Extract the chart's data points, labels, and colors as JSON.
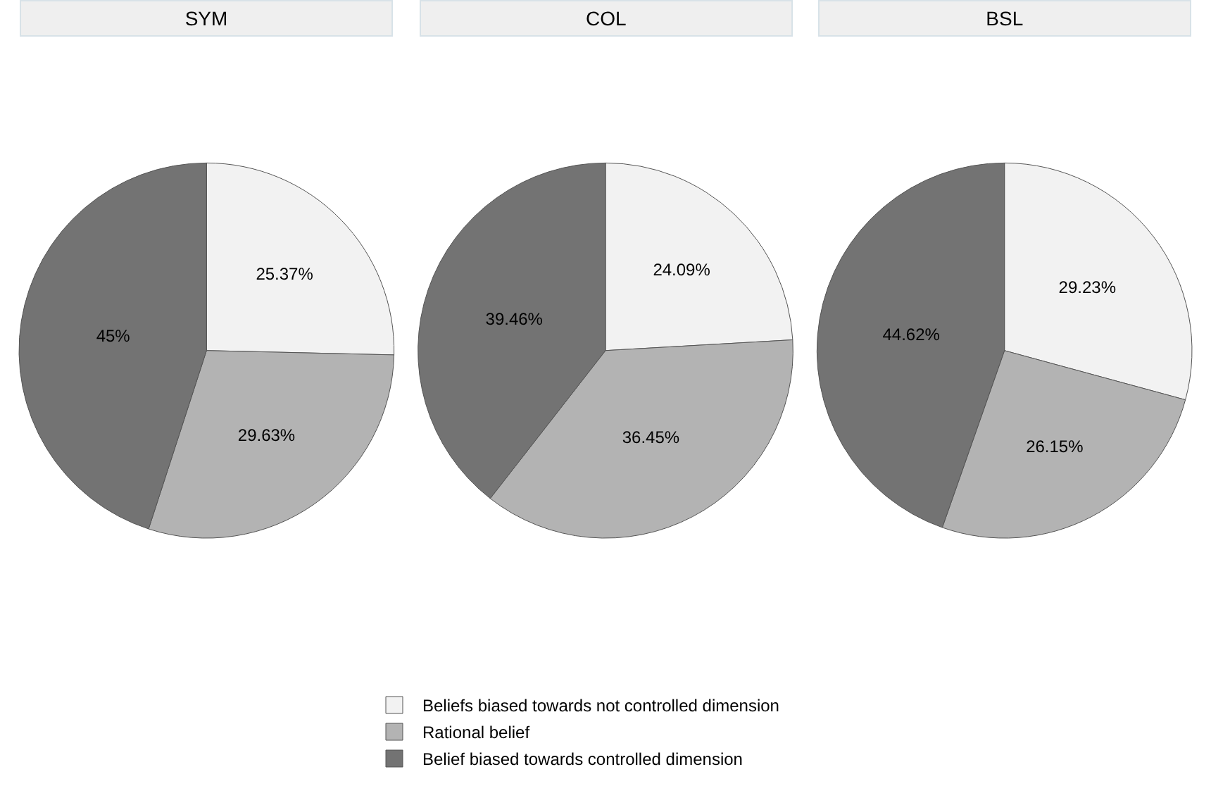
{
  "chart_data": [
    {
      "type": "pie",
      "title": "SYM",
      "categories": [
        "Beliefs biased towards not controlled dimension",
        "Rational belief",
        "Belief biased towards controlled dimension"
      ],
      "values": [
        25.37,
        29.63,
        45
      ],
      "value_labels": [
        "25.37%",
        "29.63%",
        "45%"
      ],
      "colors": [
        "#f2f2f2",
        "#b3b3b3",
        "#737373"
      ],
      "legend": "bottom"
    },
    {
      "type": "pie",
      "title": "COL",
      "categories": [
        null,
        null,
        null
      ],
      "values": [
        24.09,
        36.45,
        39.46
      ],
      "value_labels": [
        "24.09%",
        "36.45%",
        "39.46%"
      ],
      "colors": [
        "#f2f2f2",
        "#b3b3b3",
        "#737373"
      ]
    },
    {
      "type": "pie",
      "title": "BSL",
      "categories": [
        null,
        null,
        null
      ],
      "values": [
        29.23,
        26.15,
        44.62
      ],
      "value_labels": [
        "29.23%",
        "26.15%",
        "44.62%"
      ],
      "colors": [
        "#f2f2f2",
        "#b3b3b3",
        "#737373"
      ]
    }
  ]
}
